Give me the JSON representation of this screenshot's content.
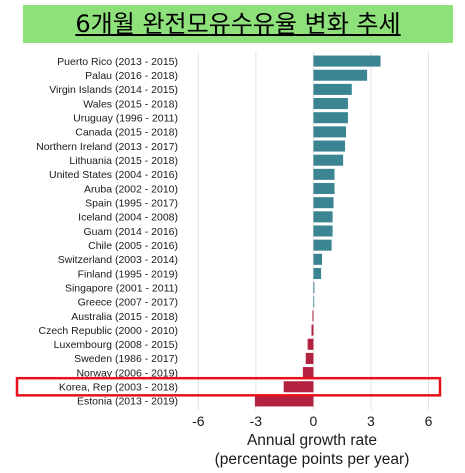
{
  "title": "6개월 완전모유수유율 변화 추세",
  "chart_data": {
    "type": "bar",
    "orientation": "horizontal",
    "categories": [
      "Puerto Rico (2013 - 2015)",
      "Palau (2016 - 2018)",
      "Virgin Islands (2014 - 2015)",
      "Wales (2015 - 2018)",
      "Uruguay (1996 - 2011)",
      "Canada (2015 - 2018)",
      "Northern Ireland (2013 - 2017)",
      "Lithuania (2015 - 2018)",
      "United States (2004 - 2016)",
      "Aruba (2002 - 2010)",
      "Spain (1995 - 2017)",
      "Iceland (2004 - 2008)",
      "Guam (2014 - 2016)",
      "Chile (2005 - 2016)",
      "Switzerland (2003 - 2014)",
      "Finland (1995 - 2019)",
      "Singapore (2001 - 2011)",
      "Greece (2007 - 2017)",
      "Australia (2015 - 2018)",
      "Czech Republic (2000 - 2010)",
      "Luxembourg (2008 - 2015)",
      "Sweden (1986 - 2017)",
      "Norway (2006 - 2019)",
      "Korea, Rep (2003 - 2018)",
      "Estonia (2013 - 2019)"
    ],
    "values": [
      3.5,
      2.8,
      2.0,
      1.8,
      1.8,
      1.7,
      1.65,
      1.55,
      1.1,
      1.1,
      1.05,
      1.0,
      1.0,
      0.95,
      0.45,
      0.4,
      0.05,
      0.02,
      -0.05,
      -0.1,
      -0.3,
      -0.4,
      -0.55,
      -1.55,
      -3.05
    ],
    "xlim": [
      -6.8,
      6.6
    ],
    "xticks": [
      -6,
      -3,
      0,
      3,
      6
    ],
    "xtick_labels": [
      "-6",
      "-3",
      "0",
      "3",
      "6"
    ],
    "xlabel": "Annual growth rate",
    "xlabel_sub": "(percentage points per year)",
    "ylabel": "",
    "grid": "vertical",
    "colors": {
      "positive": "#3a8591",
      "negative": "#b2213f",
      "highlight_box": "#e8101a",
      "title_bg": "#8ee07a"
    },
    "highlight": "Korea, Rep (2003 - 2018)"
  }
}
